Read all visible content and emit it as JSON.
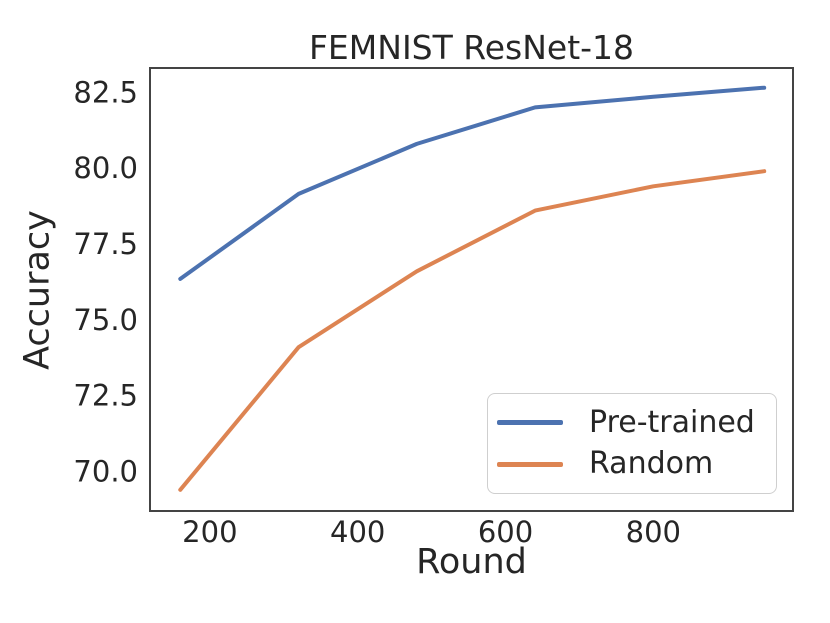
{
  "chart_data": {
    "type": "line",
    "title": "FEMNIST ResNet-18",
    "xlabel": "Round",
    "ylabel": "Accuracy",
    "x": [
      160,
      320,
      480,
      640,
      800,
      950
    ],
    "series": [
      {
        "name": "Pre-trained",
        "color": "#4C72B0",
        "values": [
          76.35,
          79.15,
          80.8,
          82.0,
          82.35,
          82.65
        ]
      },
      {
        "name": "Random",
        "color": "#DD8452",
        "values": [
          69.4,
          74.1,
          76.6,
          78.6,
          79.4,
          79.9
        ]
      }
    ],
    "xticks": [
      200,
      400,
      600,
      800
    ],
    "yticks": [
      70.0,
      72.5,
      75.0,
      77.5,
      80.0,
      82.5
    ],
    "xlim": [
      119,
      989
    ],
    "ylim": [
      68.7,
      83.3
    ],
    "grid": false,
    "frame_color": "#444444",
    "text_color": "#262626",
    "legend": {
      "position": "lower right",
      "entries": [
        "Pre-trained",
        "Random"
      ]
    }
  }
}
